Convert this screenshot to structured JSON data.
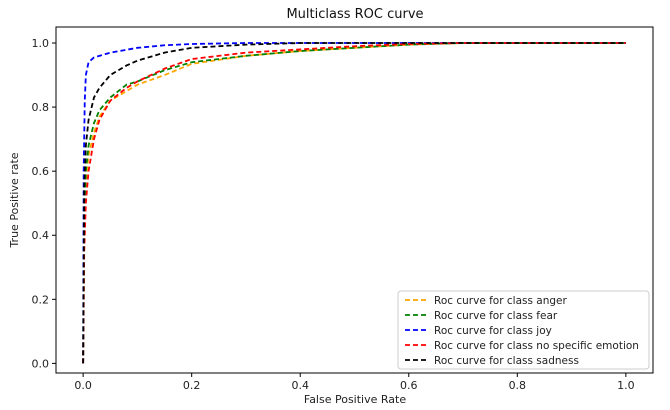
{
  "chart_data": {
    "type": "line",
    "title": "Multiclass ROC curve",
    "xlabel": "False Positive Rate",
    "ylabel": "True Positive rate",
    "xlim": [
      -0.05,
      1.05
    ],
    "ylim": [
      -0.03,
      1.05
    ],
    "xticks": [
      0.0,
      0.2,
      0.4,
      0.6,
      0.8,
      1.0
    ],
    "xtick_labels": [
      "0.0",
      "0.2",
      "0.4",
      "0.6",
      "0.8",
      "1.0"
    ],
    "yticks": [
      0.0,
      0.2,
      0.4,
      0.6,
      0.8,
      1.0
    ],
    "ytick_labels": [
      "0.0",
      "0.2",
      "0.4",
      "0.6",
      "0.8",
      "1.0"
    ],
    "grid": false,
    "legend_position": "lower-right",
    "line_style": "dashed",
    "series": [
      {
        "name": "Roc curve for class anger",
        "color": "#ffa500",
        "x": [
          0.0,
          0.002,
          0.005,
          0.01,
          0.02,
          0.03,
          0.05,
          0.08,
          0.1,
          0.15,
          0.2,
          0.3,
          0.4,
          0.5,
          0.6,
          0.7,
          0.8,
          1.0
        ],
        "y": [
          0.0,
          0.4,
          0.56,
          0.65,
          0.72,
          0.77,
          0.82,
          0.85,
          0.87,
          0.9,
          0.935,
          0.96,
          0.975,
          0.985,
          0.995,
          1.0,
          1.0,
          1.0
        ]
      },
      {
        "name": "Roc curve for class fear",
        "color": "#008000",
        "x": [
          0.0,
          0.002,
          0.005,
          0.01,
          0.02,
          0.03,
          0.05,
          0.08,
          0.1,
          0.15,
          0.2,
          0.3,
          0.4,
          0.5,
          0.6,
          0.7,
          0.8,
          1.0
        ],
        "y": [
          0.0,
          0.45,
          0.6,
          0.68,
          0.75,
          0.79,
          0.83,
          0.87,
          0.88,
          0.915,
          0.94,
          0.96,
          0.975,
          0.985,
          0.995,
          1.0,
          1.0,
          1.0
        ]
      },
      {
        "name": "Roc curve for class joy",
        "color": "#0000ff",
        "x": [
          0.0,
          0.001,
          0.003,
          0.005,
          0.01,
          0.02,
          0.05,
          0.1,
          0.15,
          0.2,
          0.3,
          0.4,
          0.5,
          1.0
        ],
        "y": [
          0.0,
          0.6,
          0.82,
          0.9,
          0.94,
          0.955,
          0.97,
          0.985,
          0.993,
          0.997,
          1.0,
          1.0,
          1.0,
          1.0
        ]
      },
      {
        "name": "Roc curve for class no specific emotion",
        "color": "#ff0000",
        "x": [
          0.0,
          0.002,
          0.005,
          0.01,
          0.02,
          0.03,
          0.05,
          0.08,
          0.1,
          0.15,
          0.2,
          0.3,
          0.4,
          0.5,
          0.6,
          0.7,
          0.8,
          1.0
        ],
        "y": [
          0.0,
          0.35,
          0.5,
          0.6,
          0.7,
          0.76,
          0.82,
          0.86,
          0.88,
          0.92,
          0.95,
          0.97,
          0.98,
          0.99,
          0.997,
          1.0,
          1.0,
          1.0
        ]
      },
      {
        "name": "Roc curve for class sadness",
        "color": "#000000",
        "x": [
          0.0,
          0.002,
          0.005,
          0.01,
          0.02,
          0.03,
          0.05,
          0.08,
          0.1,
          0.15,
          0.2,
          0.3,
          0.4,
          0.5,
          1.0
        ],
        "y": [
          0.0,
          0.55,
          0.68,
          0.76,
          0.83,
          0.86,
          0.9,
          0.93,
          0.945,
          0.97,
          0.985,
          0.995,
          1.0,
          1.0,
          1.0
        ]
      }
    ]
  }
}
